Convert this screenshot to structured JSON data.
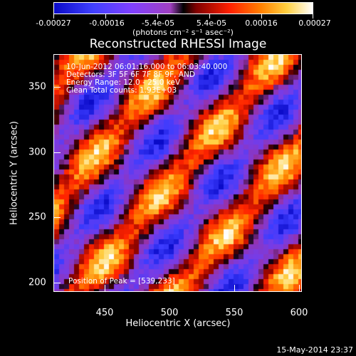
{
  "colorbar": {
    "ticks": [
      "-0.00027",
      "-0.00016",
      "-5.4e-05",
      "5.4e-05",
      "0.00016",
      "0.00027"
    ],
    "unit_label": "(photons cm⁻² s⁻¹ asec⁻²)"
  },
  "title": "Reconstructed RHESSI Image",
  "info": {
    "line1": "10-Jun-2012 06:01:16.000 to 06:03:40.000",
    "line2": "Detectors: 3F 5F 6F 7F 8F 9F, AND",
    "line3": "Energy Range: 12.0 - 25.0 keV",
    "line4": "Clean     Total counts: 1.93E+03",
    "peak": "Position of Peak = [539,233]"
  },
  "timestamp": "15-May-2014 23:37",
  "chart_data": {
    "type": "heatmap",
    "title": "Reconstructed RHESSI Image",
    "xlabel": "Heliocentric X (arcsec)",
    "ylabel": "Heliocentric Y (arcsec)",
    "xlim": [
      411,
      602
    ],
    "ylim": [
      185,
      376
    ],
    "xticks": [
      "450",
      "500",
      "550",
      "600"
    ],
    "yticks": [
      "200",
      "250",
      "300",
      "350"
    ],
    "color_range": [
      -0.00027,
      0.00027
    ],
    "peak_position": [
      539,
      233
    ]
  }
}
